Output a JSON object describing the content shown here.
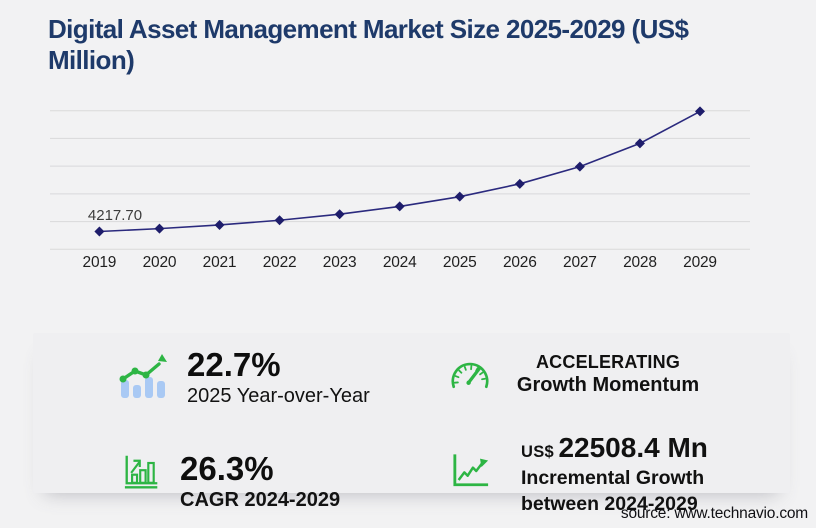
{
  "header": {
    "title_line1": "Digital Asset Management Market Size 2025-2029 (US$",
    "title_line2": "Million)"
  },
  "chart_data": {
    "type": "line",
    "title": "Digital Asset Management Market Size 2025-2029 (US$ Million)",
    "categories": [
      "2019",
      "2020",
      "2021",
      "2022",
      "2023",
      "2024",
      "2025",
      "2026",
      "2027",
      "2028",
      "2029"
    ],
    "series": [
      {
        "name": "Market size (US$ million)",
        "values": [
          4217.7,
          4901.0,
          5773.4,
          6887.7,
          8320.3,
          10167.4,
          12475.4,
          15519.4,
          19601.0,
          25108.9,
          32675.8
        ]
      }
    ],
    "data_labels": [
      {
        "category": "2019",
        "text": "4217.70"
      }
    ],
    "ylim": [
      0,
      32850
    ],
    "gridlines": 6,
    "grid": "horizontal",
    "legend": "none",
    "marker": "diamond"
  },
  "stats": {
    "yoy": {
      "icon": "bar-chart-trend-icon",
      "value": "22.7%",
      "label": "2025 Year-over-Year"
    },
    "momentum": {
      "icon": "gauge-icon",
      "line1": "ACCELERATING",
      "line2": "Growth Momentum"
    },
    "cagr": {
      "icon": "growth-bars-arrow-icon",
      "value": "26.3%",
      "label": "CAGR 2024-2029"
    },
    "incremental": {
      "icon": "zigzag-arrow-icon",
      "currency": "US$",
      "value": "22508.4 Mn",
      "label_line1": "Incremental Growth",
      "label_line2": "between 2024-2029"
    }
  },
  "footer": {
    "source": "source: www.technavio.com"
  },
  "colors": {
    "page_bg": "#f2f2f3",
    "panel_bg": "#efeff1",
    "title_navy": "#1e3a6a",
    "line_navy": "#2b2a7e",
    "marker_navy": "#1e1d6b",
    "accent_green": "#2db544",
    "bar_blue": "#a9c9f4",
    "grid_gray": "#d9d9da"
  }
}
